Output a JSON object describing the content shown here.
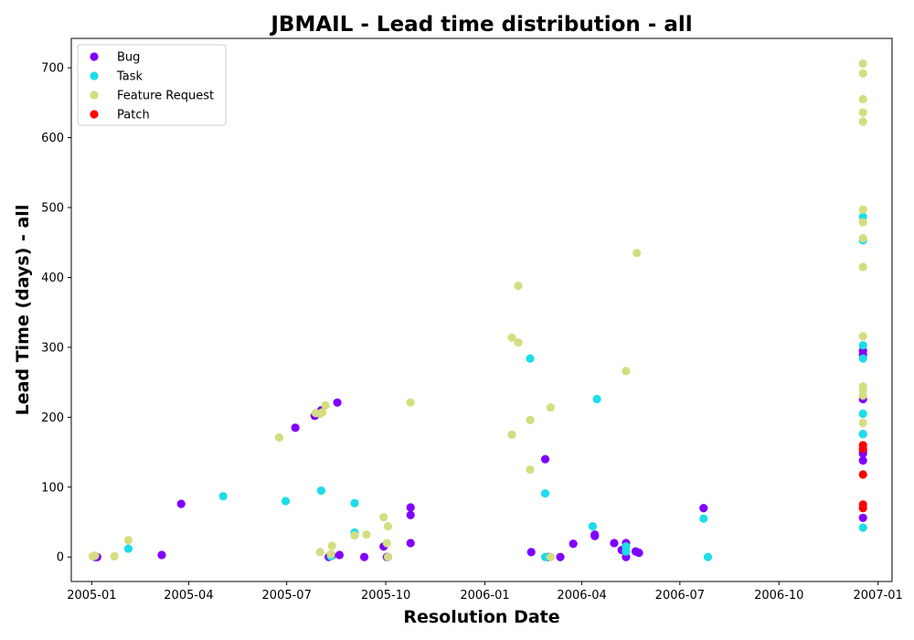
{
  "chart_data": {
    "type": "scatter",
    "title": "JBMAIL - Lead time distribution - all",
    "xlabel": "Resolution Date",
    "ylabel": "Lead Time (days) - all",
    "xlim": [
      "2004-12-13",
      "2007-01-14"
    ],
    "ylim": [
      -35,
      742
    ],
    "x_ticks": [
      "2005-01",
      "2005-04",
      "2005-07",
      "2005-10",
      "2006-01",
      "2006-04",
      "2006-07",
      "2006-10",
      "2007-01"
    ],
    "y_ticks": [
      0,
      100,
      200,
      300,
      400,
      500,
      600,
      700
    ],
    "legend_position": "top-left",
    "series": [
      {
        "name": "Bug",
        "color": "#8000ff",
        "points": [
          [
            "2005-01-04",
            0
          ],
          [
            "2005-01-06",
            0
          ],
          [
            "2005-03-07",
            3
          ],
          [
            "2005-03-25",
            76
          ],
          [
            "2005-07-09",
            185
          ],
          [
            "2005-07-27",
            202
          ],
          [
            "2005-08-02",
            210
          ],
          [
            "2005-08-09",
            0
          ],
          [
            "2005-08-12",
            2
          ],
          [
            "2005-08-17",
            221
          ],
          [
            "2005-08-19",
            3
          ],
          [
            "2005-09-11",
            0
          ],
          [
            "2005-09-29",
            15
          ],
          [
            "2005-10-02",
            0
          ],
          [
            "2005-10-03",
            0
          ],
          [
            "2005-10-24",
            71
          ],
          [
            "2005-10-24",
            60
          ],
          [
            "2005-10-24",
            20
          ],
          [
            "2006-02-13",
            7
          ],
          [
            "2006-02-26",
            140
          ],
          [
            "2006-03-01",
            0
          ],
          [
            "2006-03-12",
            0
          ],
          [
            "2006-03-24",
            19
          ],
          [
            "2006-04-13",
            30
          ],
          [
            "2006-04-13",
            32
          ],
          [
            "2006-05-01",
            20
          ],
          [
            "2006-05-08",
            10
          ],
          [
            "2006-05-12",
            20
          ],
          [
            "2006-05-12",
            0
          ],
          [
            "2006-05-21",
            8
          ],
          [
            "2006-05-24",
            6
          ],
          [
            "2006-07-23",
            70
          ],
          [
            "2006-12-18",
            295
          ],
          [
            "2006-12-18",
            289
          ],
          [
            "2006-12-18",
            226
          ],
          [
            "2006-12-18",
            176
          ],
          [
            "2006-12-18",
            152
          ],
          [
            "2006-12-18",
            148
          ],
          [
            "2006-12-18",
            138
          ],
          [
            "2006-12-18",
            56
          ]
        ]
      },
      {
        "name": "Task",
        "color": "#1cdde8",
        "points": [
          [
            "2005-02-04",
            12
          ],
          [
            "2005-05-03",
            87
          ],
          [
            "2005-06-30",
            80
          ],
          [
            "2005-08-02",
            95
          ],
          [
            "2005-08-11",
            1
          ],
          [
            "2005-09-02",
            35
          ],
          [
            "2005-09-02",
            77
          ],
          [
            "2006-02-12",
            284
          ],
          [
            "2006-02-26",
            91
          ],
          [
            "2006-02-26",
            0
          ],
          [
            "2006-04-11",
            44
          ],
          [
            "2006-04-15",
            226
          ],
          [
            "2006-05-12",
            15
          ],
          [
            "2006-05-12",
            8
          ],
          [
            "2006-07-23",
            55
          ],
          [
            "2006-07-27",
            0
          ],
          [
            "2006-12-18",
            487
          ],
          [
            "2006-12-18",
            453
          ],
          [
            "2006-12-18",
            303
          ],
          [
            "2006-12-18",
            284
          ],
          [
            "2006-12-18",
            205
          ],
          [
            "2006-12-18",
            176
          ],
          [
            "2006-12-18",
            42
          ]
        ]
      },
      {
        "name": "Feature Request",
        "color": "#d4dd80",
        "points": [
          [
            "2005-01-02",
            1
          ],
          [
            "2005-01-04",
            2
          ],
          [
            "2005-01-22",
            1
          ],
          [
            "2005-02-04",
            24
          ],
          [
            "2005-06-24",
            171
          ],
          [
            "2005-07-28",
            206
          ],
          [
            "2005-08-01",
            205
          ],
          [
            "2005-08-03",
            207
          ],
          [
            "2005-08-06",
            217
          ],
          [
            "2005-08-01",
            7
          ],
          [
            "2005-08-11",
            4
          ],
          [
            "2005-08-12",
            16
          ],
          [
            "2005-09-02",
            31
          ],
          [
            "2005-09-13",
            32
          ],
          [
            "2005-09-29",
            57
          ],
          [
            "2005-10-02",
            20
          ],
          [
            "2005-10-03",
            44
          ],
          [
            "2005-10-03",
            0
          ],
          [
            "2005-10-24",
            221
          ],
          [
            "2006-01-26",
            314
          ],
          [
            "2006-01-26",
            175
          ],
          [
            "2006-02-01",
            307
          ],
          [
            "2006-02-01",
            388
          ],
          [
            "2006-02-12",
            196
          ],
          [
            "2006-02-12",
            125
          ],
          [
            "2006-03-03",
            214
          ],
          [
            "2006-03-03",
            0
          ],
          [
            "2006-05-12",
            266
          ],
          [
            "2006-05-22",
            435
          ],
          [
            "2006-12-18",
            706
          ],
          [
            "2006-12-18",
            692
          ],
          [
            "2006-12-18",
            655
          ],
          [
            "2006-12-18",
            636
          ],
          [
            "2006-12-18",
            623
          ],
          [
            "2006-12-18",
            497
          ],
          [
            "2006-12-18",
            479
          ],
          [
            "2006-12-18",
            456
          ],
          [
            "2006-12-18",
            415
          ],
          [
            "2006-12-18",
            316
          ],
          [
            "2006-12-18",
            244
          ],
          [
            "2006-12-18",
            238
          ],
          [
            "2006-12-18",
            231
          ],
          [
            "2006-12-18",
            192
          ]
        ]
      },
      {
        "name": "Patch",
        "color": "#ff0000",
        "points": [
          [
            "2006-12-18",
            160
          ],
          [
            "2006-12-18",
            155
          ],
          [
            "2006-12-18",
            118
          ],
          [
            "2006-12-18",
            75
          ],
          [
            "2006-12-18",
            70
          ]
        ]
      }
    ]
  }
}
